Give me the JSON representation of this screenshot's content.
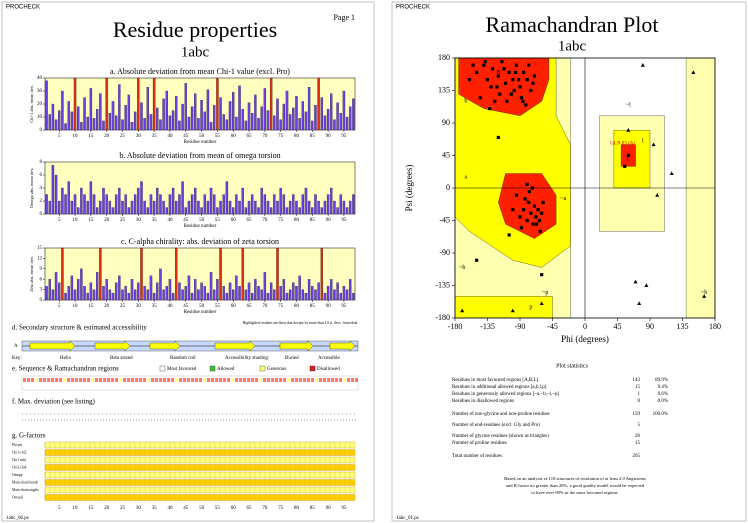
{
  "left_page": {
    "header": "PROCHECK",
    "page_label": "Page 1",
    "title": "Residue properties",
    "subtitle": "1abc",
    "charts": [
      {
        "type": "bar",
        "title": "a. Absolute deviation from mean Chi-1 value (excl. Pro)",
        "ylabel": "Chi-1 abs. mean dev.",
        "xlabel": "Residue number",
        "color": "#6a40e0",
        "highlight_color": "#d83010",
        "xlim": [
          0.5,
          98.5
        ],
        "ylim": [
          0,
          40
        ],
        "yticks": [
          0,
          10,
          20,
          30,
          40
        ],
        "xticks": [
          5,
          10,
          15,
          20,
          25,
          30,
          35,
          40,
          45,
          50,
          55,
          60,
          65,
          70,
          75,
          80,
          85,
          90,
          95
        ],
        "values": [
          38,
          12,
          20,
          8,
          15,
          30,
          5,
          22,
          14,
          40,
          18,
          6,
          25,
          10,
          32,
          9,
          16,
          28,
          7,
          40,
          13,
          22,
          11,
          35,
          8,
          19,
          27,
          6,
          14,
          40,
          21,
          9,
          33,
          12,
          40,
          17,
          8,
          24,
          30,
          11,
          15,
          26,
          7,
          20,
          36,
          10,
          18,
          28,
          9,
          23,
          14,
          31,
          6,
          19,
          40,
          25,
          12,
          8,
          22,
          29,
          10,
          34,
          16,
          7,
          21,
          13,
          27,
          9,
          18,
          32,
          15,
          40,
          11,
          24,
          8,
          20,
          30,
          12,
          17,
          26,
          9,
          22,
          14,
          33,
          7,
          19,
          40,
          25,
          11,
          16,
          28,
          8,
          21,
          13,
          30,
          10,
          18,
          24
        ]
      },
      {
        "type": "bar",
        "title": "b. Absolute deviation from mean of omega torsion",
        "ylabel": "Omega abs. mean dev.",
        "xlabel": "Residue number",
        "color": "#6a40e0",
        "highlight_color": "#d83010",
        "xlim": [
          0.5,
          98.5
        ],
        "ylim": [
          0,
          8
        ],
        "yticks": [
          0,
          2,
          4,
          6,
          8
        ],
        "xticks": [
          5,
          10,
          15,
          20,
          25,
          30,
          35,
          40,
          45,
          50,
          55,
          60,
          65,
          70,
          75,
          80,
          85,
          90,
          95
        ],
        "values": [
          3,
          2,
          7.5,
          6,
          2,
          4,
          3,
          5,
          2,
          3,
          1,
          4,
          3,
          2,
          5,
          3,
          1,
          2,
          4,
          3,
          2,
          1,
          3,
          4,
          2,
          3,
          1,
          2,
          3,
          4,
          5,
          2,
          1,
          3,
          2,
          4,
          3,
          2,
          1,
          3,
          4,
          2,
          3,
          5,
          1,
          2,
          3,
          4,
          2,
          1,
          3,
          2,
          4,
          3,
          1,
          2,
          3,
          5,
          2,
          1,
          3,
          2,
          4,
          1,
          2,
          3,
          2,
          1,
          4,
          3,
          2,
          1,
          3,
          2,
          4,
          3,
          1,
          2,
          3,
          2,
          1,
          3,
          4,
          2,
          1,
          3,
          2,
          1,
          2,
          3,
          4,
          2,
          1,
          3,
          2,
          1,
          2,
          3
        ]
      },
      {
        "type": "bar",
        "title": "c. C-alpha chirality: abs. deviation of zeta torsion",
        "ylabel": "Zeta abs. mean dev.",
        "xlabel": "Residue number",
        "color": "#6a40e0",
        "highlight_color": "#d83010",
        "xlim": [
          0.5,
          98.5
        ],
        "ylim": [
          0,
          15
        ],
        "yticks": [
          0,
          3,
          6,
          9,
          12,
          15
        ],
        "xticks": [
          5,
          10,
          15,
          20,
          25,
          30,
          35,
          40,
          45,
          50,
          55,
          60,
          65,
          70,
          75,
          80,
          85,
          90,
          95
        ],
        "values": [
          4,
          6,
          3,
          8,
          5,
          15,
          2,
          4,
          7,
          3,
          6,
          9,
          4,
          2,
          5,
          3,
          8,
          15,
          4,
          6,
          3,
          2,
          5,
          7,
          3,
          4,
          2,
          6,
          3,
          5,
          15,
          4,
          3,
          7,
          2,
          5,
          9,
          3,
          4,
          6,
          2,
          15,
          5,
          3,
          4,
          7,
          2,
          6,
          3,
          5,
          4,
          2,
          8,
          3,
          6,
          15,
          4,
          2,
          5,
          3,
          7,
          4,
          15,
          3,
          5,
          2,
          6,
          4,
          3,
          8,
          2,
          5,
          3,
          15,
          4,
          6,
          2,
          3,
          5,
          4,
          7,
          3,
          2,
          6,
          4,
          3,
          5,
          15,
          2,
          4,
          6,
          3,
          5,
          2,
          4,
          3,
          6,
          2
        ]
      }
    ],
    "section_d": {
      "title": "d. Secondary structure & estimated accessibility",
      "key": "Key:",
      "helix": "Helix",
      "strand": "Beta strand",
      "coil": "Random coil",
      "shading": "Accessibility shading:",
      "buried": "Buried",
      "accessible": "Accessible",
      "note": "Highlighted residues are those that deviate by more than 2.0 st. devs. from ideal",
      "chain": "A"
    },
    "section_e": {
      "title": "e. Sequence & Ramachandran regions",
      "legend": [
        "Most favoured",
        "Allowed",
        "Generous",
        "Disallowed"
      ]
    },
    "section_f": {
      "title": "f. Max. deviation (see listing)"
    },
    "section_g": {
      "title": "g. G-factors",
      "rows": [
        "Phi-psi",
        "Chi1-chi2",
        "Chi1 only",
        "Chi3-chi4",
        "Omega",
        "Main-chain bonds",
        "Main-chain angles",
        "Overall"
      ]
    },
    "footer": "1abc_06.ps"
  },
  "right_page": {
    "header": "PROCHECK",
    "title": "Ramachandran Plot",
    "subtitle": "1abc",
    "plot": {
      "type": "scatter",
      "xlabel": "Phi (degrees)",
      "ylabel": "Psi (degrees)",
      "xlim": [
        -180,
        180
      ],
      "ylim": [
        -180,
        180
      ],
      "xticks": [
        -180,
        -135,
        -90,
        -45,
        0,
        45,
        90,
        135,
        180
      ],
      "yticks": [
        -180,
        -135,
        -90,
        -45,
        0,
        45,
        90,
        135,
        180
      ],
      "series": [
        {
          "marker": "square",
          "color": "#000000",
          "x": [
            -150,
            -140,
            -135,
            -130,
            -128,
            -120,
            -118,
            -115,
            -110,
            -108,
            -105,
            -100,
            -98,
            -95,
            -90,
            -88,
            -85,
            -80,
            -78,
            -75,
            -72,
            -70,
            -145,
            -125,
            -112,
            -102,
            -92,
            -82,
            -138,
            -132,
            -122,
            -96,
            -86,
            -160,
            -155,
            -90,
            -85,
            -80,
            -78,
            -75,
            -72,
            -70,
            -68,
            -65,
            -63,
            -60,
            -58,
            -95,
            -88,
            -83,
            -77,
            -67,
            -62,
            -100,
            -73,
            -120,
            -60,
            -150,
            60,
            55,
            -80,
            -105
          ],
          "y": [
            160,
            170,
            150,
            140,
            165,
            155,
            130,
            175,
            145,
            120,
            160,
            150,
            135,
            170,
            140,
            125,
            160,
            150,
            170,
            135,
            145,
            155,
            125,
            120,
            165,
            130,
            150,
            115,
            175,
            110,
            140,
            160,
            120,
            150,
            170,
            -40,
            -30,
            -45,
            -20,
            -35,
            -50,
            -25,
            -40,
            -30,
            -45,
            -35,
            -20,
            -10,
            -55,
            -15,
            -5,
            -50,
            -60,
            -30,
            0,
            70,
            -120,
            -100,
            45,
            30,
            5,
            -65
          ]
        },
        {
          "marker": "triangle",
          "color": "#000000",
          "x": [
            80,
            70,
            95,
            120,
            150,
            165,
            -60,
            -170,
            75,
            100,
            -100,
            60,
            85
          ],
          "y": [
            170,
            -130,
            60,
            20,
            160,
            -150,
            -160,
            -170,
            -160,
            -10,
            -170,
            80,
            -135
          ]
        }
      ],
      "region_labels": [
        "A",
        "B",
        "L",
        "a",
        "b",
        "l",
        "p",
        "~a",
        "~b",
        "~l",
        "~p",
        "~b"
      ],
      "annotation": "GLN 83 (A)"
    },
    "stats_title": "Plot statistics",
    "stats": [
      [
        "Residues in most favoured regions [A,B,L]",
        "143",
        "89.9%"
      ],
      [
        "Residues in additional allowed regions [a,b,l,p]",
        "15",
        "9.4%"
      ],
      [
        "Residues in generously allowed regions [~a,~b,~l,~p]",
        "1",
        "0.6%"
      ],
      [
        "Residues in disallowed regions",
        "0",
        "0.0%"
      ],
      [
        "Number of non-glycine and non-proline residues",
        "159",
        "100.0%"
      ],
      [
        "Number of end-residues (excl. Gly and Pro)",
        "5"
      ],
      [
        "Number of glycine residues (shown as triangles)",
        "26"
      ],
      [
        "Number of proline residues",
        "15"
      ],
      [
        "Total number of residues",
        "205"
      ]
    ],
    "footnote": [
      "Based on an analysis of 118 structures of resolution of at least 2.0 Angstroms",
      "and R-factor no greater than 20%, a good quality model would be expected",
      "to have over 90% in the most favoured regions."
    ],
    "footer": "1abc_01.ps"
  }
}
